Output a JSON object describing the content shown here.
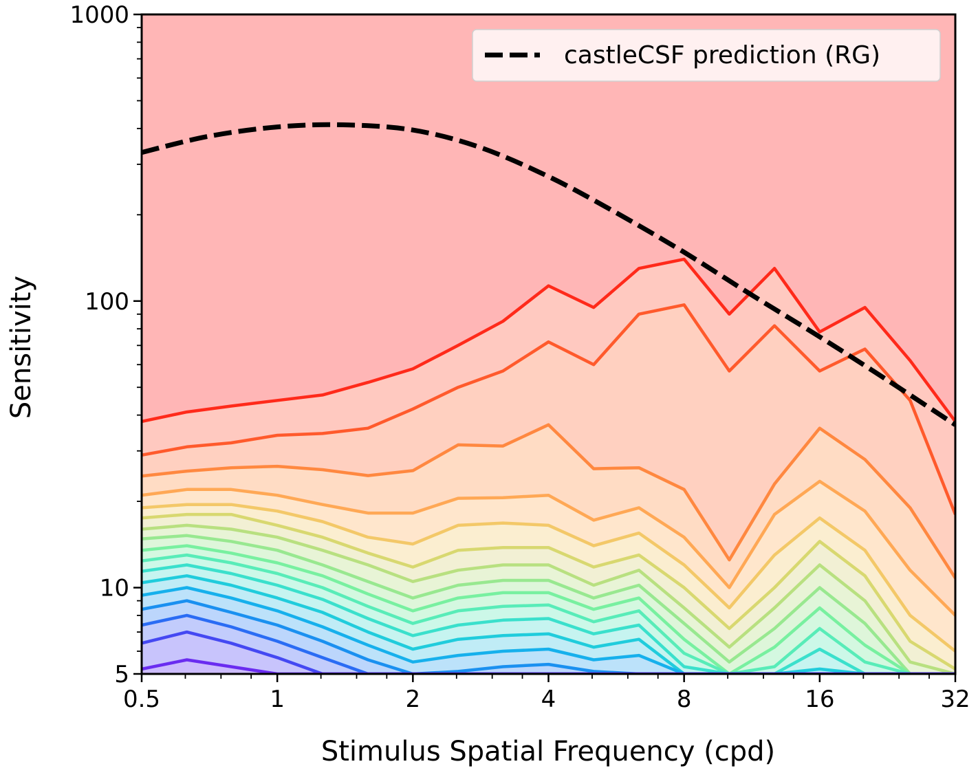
{
  "chart_data": {
    "type": "line",
    "xlabel": "Stimulus Spatial Frequency (cpd)",
    "ylabel": "Sensitivity",
    "xscale": "log2",
    "yscale": "log10",
    "xlim": [
      0.5,
      32
    ],
    "ylim": [
      5,
      1000
    ],
    "xticks": [
      0.5,
      1,
      2,
      4,
      8,
      16,
      32
    ],
    "xtick_labels": [
      "0.5",
      "1",
      "2",
      "4",
      "8",
      "16",
      "32"
    ],
    "yticks": [
      5,
      10,
      100,
      1000
    ],
    "ytick_labels": [
      "5",
      "10",
      "100",
      "1000"
    ],
    "legend": {
      "position": "top-right",
      "entries": [
        "castleCSF prediction (RG)"
      ]
    },
    "background_color": "#ffb6b6",
    "prediction": {
      "name": "castleCSF prediction (RG)",
      "style": "dashed",
      "color": "#000000",
      "x": [
        0.5,
        0.7,
        1,
        1.4,
        2,
        2.8,
        4,
        5.6,
        8,
        11.3,
        16,
        22.6,
        32
      ],
      "y": [
        330,
        375,
        405,
        412,
        395,
        345,
        272,
        205,
        148,
        105,
        75,
        53,
        37
      ]
    },
    "contour_x": [
      0.5,
      0.63,
      0.79,
      1,
      1.26,
      1.59,
      2,
      2.52,
      3.17,
      4,
      5.04,
      6.35,
      8,
      10.08,
      12.7,
      16,
      20.16,
      25.4,
      32
    ],
    "contours": [
      {
        "color": "#ff2a1a",
        "fill": "#ffc9c0",
        "y": [
          38,
          41,
          43,
          45,
          47,
          52,
          58,
          70,
          85,
          113,
          95,
          130,
          140,
          90,
          130,
          78,
          95,
          62,
          38
        ]
      },
      {
        "color": "#ff5a2c",
        "fill": "#ffd0c0",
        "y": [
          29,
          31,
          32,
          34,
          34.5,
          36,
          42,
          50,
          57,
          72,
          60,
          90,
          97,
          57,
          82,
          57,
          68,
          45,
          18
        ]
      },
      {
        "color": "#ff8840",
        "fill": "#ffdcc4",
        "y": [
          24.5,
          25.5,
          26.2,
          26.5,
          25.8,
          24.6,
          25.6,
          31.5,
          31.2,
          37,
          26,
          26.2,
          22,
          12.5,
          23,
          36,
          28,
          19,
          10.8
        ]
      },
      {
        "color": "#ffa855",
        "fill": "#ffe6cc",
        "y": [
          21,
          22,
          22,
          21,
          19.5,
          18.2,
          18.2,
          20.5,
          20.6,
          21,
          17.2,
          19,
          15,
          10,
          18,
          23.5,
          18.5,
          11.5,
          8
        ]
      },
      {
        "color": "#f3c868",
        "fill": "#fbeed0",
        "y": [
          19,
          19.5,
          19.5,
          18.5,
          17,
          15,
          14.2,
          16.5,
          16.8,
          16.5,
          14,
          15.5,
          12,
          8.5,
          13,
          17.5,
          13.5,
          8,
          6
        ]
      },
      {
        "color": "#d8d870",
        "fill": "#f2f0d4",
        "y": [
          17.5,
          18,
          18,
          16.5,
          15,
          13.2,
          11.8,
          13.5,
          13.8,
          13.8,
          11.8,
          13,
          10,
          7.2,
          10,
          14.5,
          11,
          6.5,
          5.2
        ]
      },
      {
        "color": "#b8e080",
        "fill": "#e8f4d6",
        "y": [
          16,
          16.5,
          16,
          15,
          13.5,
          12,
          10.5,
          11.5,
          12,
          12,
          10.2,
          11.5,
          8.5,
          6.2,
          8.5,
          12,
          9,
          5.5,
          5
        ]
      },
      {
        "color": "#98e890",
        "fill": "#def6da",
        "y": [
          14.8,
          15.2,
          14.5,
          13.5,
          12,
          10.5,
          9.2,
          10.2,
          10.6,
          10.6,
          9.2,
          10.2,
          7.5,
          5.5,
          7.2,
          10,
          7.5,
          5,
          5
        ]
      },
      {
        "color": "#78f0a0",
        "fill": "#d4f8e0",
        "y": [
          13.5,
          14,
          13.2,
          12.2,
          11,
          9.5,
          8.3,
          9.2,
          9.6,
          9.6,
          8.4,
          9.2,
          6.6,
          5,
          6.2,
          8.5,
          6.3,
          5,
          5
        ]
      },
      {
        "color": "#58ecb8",
        "fill": "#ccf8e8",
        "y": [
          12.4,
          13,
          12.2,
          11.2,
          10,
          8.6,
          7.5,
          8.3,
          8.6,
          8.7,
          7.6,
          8.3,
          5.9,
          5,
          5.3,
          7.2,
          5.5,
          5,
          5
        ]
      },
      {
        "color": "#3ae0cc",
        "fill": "#c6f4f0",
        "y": [
          11.4,
          12,
          11.2,
          10.2,
          9.1,
          7.8,
          6.8,
          7.4,
          7.7,
          7.8,
          6.9,
          7.4,
          5.3,
          5,
          5,
          6.1,
          5,
          5,
          5
        ]
      },
      {
        "color": "#20ccdc",
        "fill": "#c0ecf6",
        "y": [
          10.4,
          11,
          10.2,
          9.2,
          8.2,
          7,
          6.1,
          6.6,
          6.8,
          6.9,
          6.2,
          6.6,
          5,
          5,
          5,
          5.2,
          5,
          5,
          5
        ]
      },
      {
        "color": "#16b0ec",
        "fill": "#bce2fa",
        "y": [
          9.4,
          10,
          9.2,
          8.3,
          7.3,
          6.3,
          5.5,
          5.8,
          6,
          6.1,
          5.6,
          5.8,
          5,
          5,
          5,
          5,
          5,
          5,
          5
        ]
      },
      {
        "color": "#1a90f0",
        "fill": "#bcd6fc",
        "y": [
          8.4,
          9,
          8.2,
          7.4,
          6.5,
          5.6,
          5,
          5.1,
          5.3,
          5.4,
          5.1,
          5,
          5,
          5,
          5,
          5,
          5,
          5,
          5
        ]
      },
      {
        "color": "#2a6cf4",
        "fill": "#c2ccfc",
        "y": [
          7.4,
          8,
          7.3,
          6.5,
          5.7,
          5,
          5,
          5,
          5,
          5,
          5,
          5,
          5,
          5,
          5,
          5,
          5,
          5,
          5
        ]
      },
      {
        "color": "#4448f2",
        "fill": "#c8c4fc",
        "y": [
          6.4,
          7,
          6.4,
          5.7,
          5,
          5,
          5,
          5,
          5,
          5,
          5,
          5,
          5,
          5,
          5,
          5,
          5,
          5,
          5
        ]
      },
      {
        "color": "#6a2cf0",
        "fill": "#ccbcfc",
        "y": [
          5.2,
          5.6,
          5.3,
          5,
          5,
          5,
          5,
          5,
          5,
          5,
          5,
          5,
          5,
          5,
          5,
          5,
          5,
          5,
          5
        ]
      }
    ]
  }
}
